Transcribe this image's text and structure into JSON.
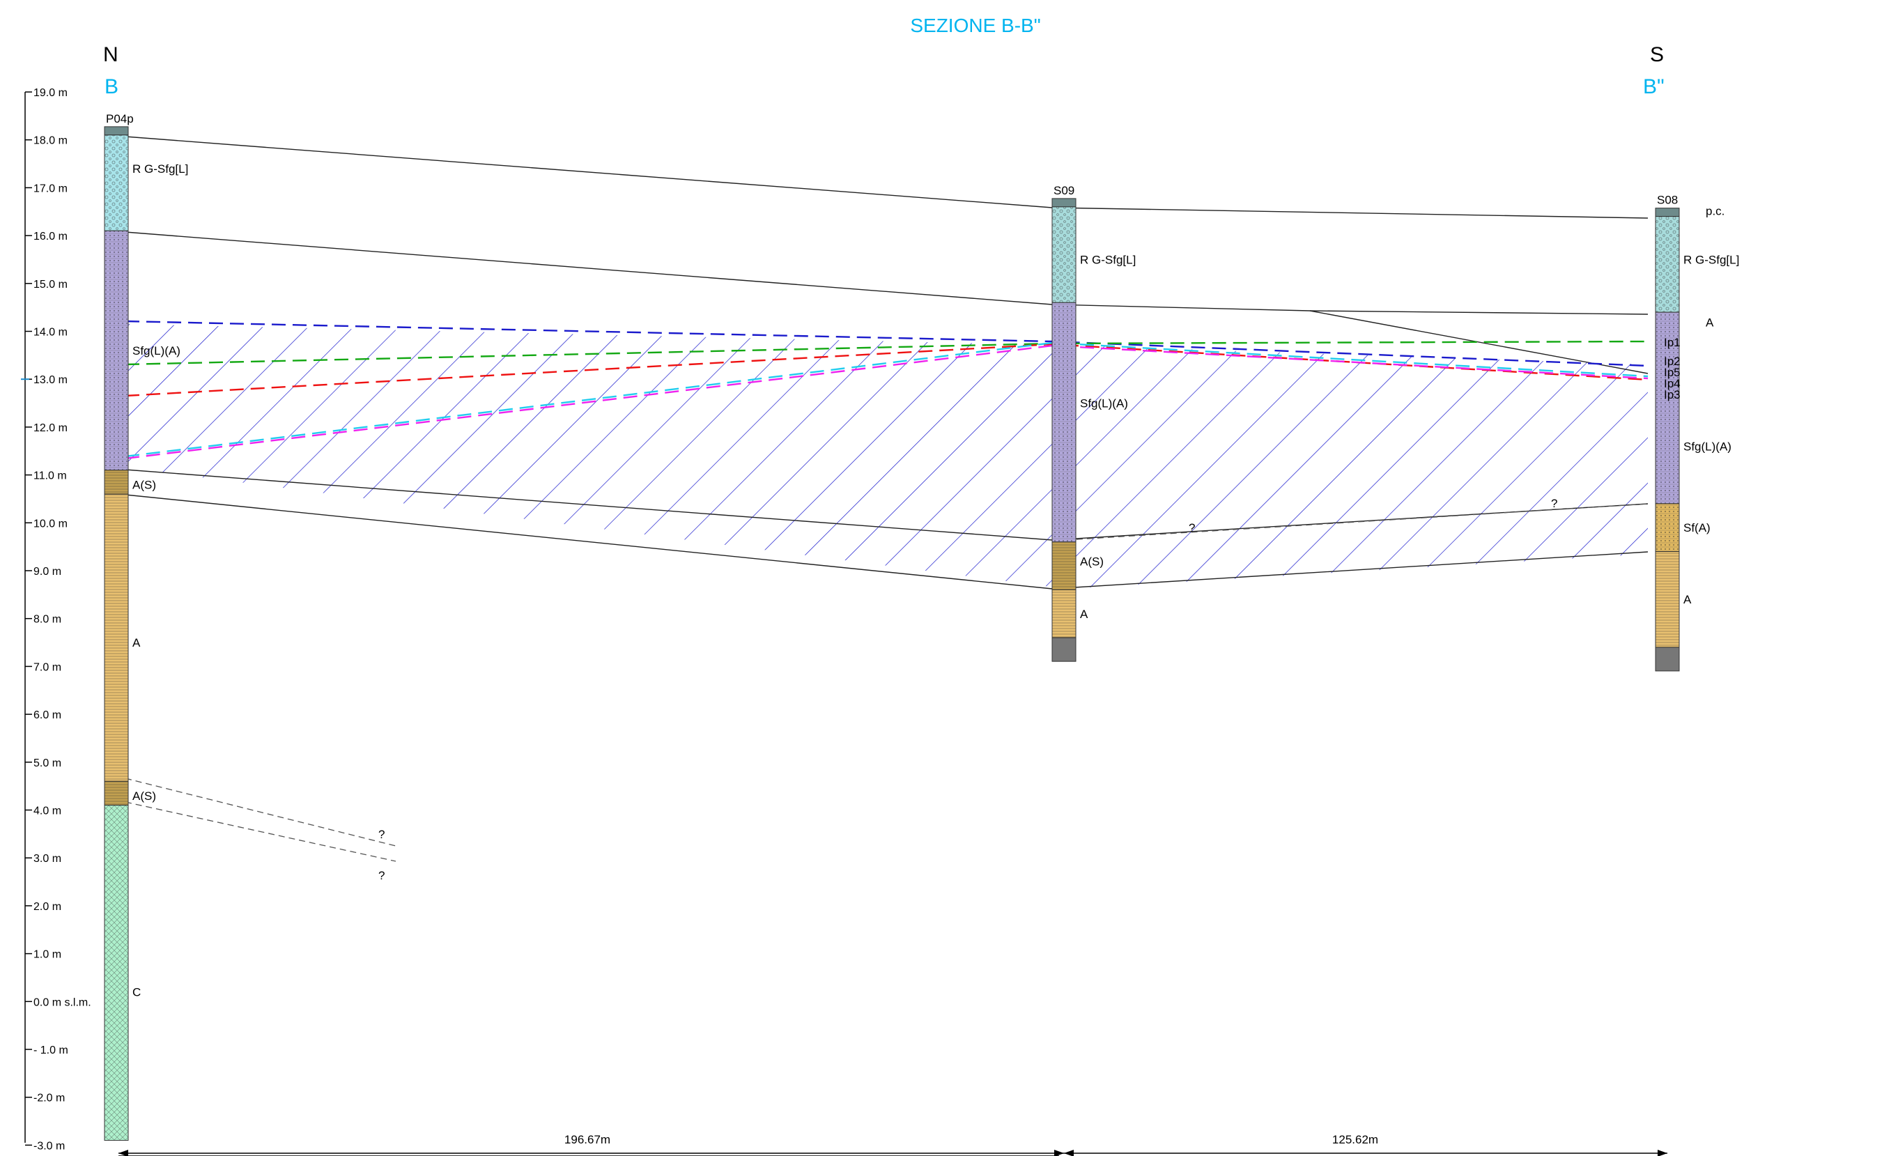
{
  "title": "SEZIONE B-B\"",
  "directions": {
    "left": {
      "cardinal": "N",
      "label": "B"
    },
    "right": {
      "cardinal": "S",
      "label": "B\""
    }
  },
  "axis": {
    "unit": "m",
    "ticks": [
      {
        "value": 19,
        "label": "19.0 m"
      },
      {
        "value": 18,
        "label": "18.0 m"
      },
      {
        "value": 17,
        "label": "17.0 m"
      },
      {
        "value": 16,
        "label": "16.0 m"
      },
      {
        "value": 15,
        "label": "15.0 m"
      },
      {
        "value": 14,
        "label": "14.0 m"
      },
      {
        "value": 13,
        "label": "13.0 m"
      },
      {
        "value": 12,
        "label": "12.0 m"
      },
      {
        "value": 11,
        "label": "11.0 m"
      },
      {
        "value": 10,
        "label": "10.0 m"
      },
      {
        "value": 9,
        "label": "9.0 m"
      },
      {
        "value": 8,
        "label": "8.0 m"
      },
      {
        "value": 7,
        "label": "7.0 m"
      },
      {
        "value": 6,
        "label": "6.0 m"
      },
      {
        "value": 5,
        "label": "5.0 m"
      },
      {
        "value": 4,
        "label": "4.0 m"
      },
      {
        "value": 3,
        "label": "3.0 m"
      },
      {
        "value": 2,
        "label": "2.0 m"
      },
      {
        "value": 1,
        "label": "1.0 m"
      },
      {
        "value": 0,
        "label": "0.0 m s.l.m."
      },
      {
        "value": -1,
        "label": "- 1.0 m"
      },
      {
        "value": -2,
        "label": "-2.0 m"
      },
      {
        "value": -3,
        "label": "-3.0 m"
      }
    ]
  },
  "boreholes": [
    {
      "name": "P04p",
      "layers": [
        {
          "top": 18.1,
          "bottom": 16.1,
          "code": "R G-Sfg[L]",
          "color": "#a8e4ea",
          "label_z": 17.4
        },
        {
          "top": 16.1,
          "bottom": 11.1,
          "code": "Sfg(L)(A)",
          "color": "#b0a6d9",
          "label_z": 13.6
        },
        {
          "top": 11.1,
          "bottom": 10.6,
          "code": "A(S)",
          "color": "#c2a050",
          "label_z": 10.8
        },
        {
          "top": 10.6,
          "bottom": 4.6,
          "code": "A",
          "color": "#e8c070",
          "label_z": 7.5
        },
        {
          "top": 4.6,
          "bottom": 4.1,
          "code": "A(S)",
          "color": "#c2a050",
          "label_z": 4.3
        },
        {
          "top": 4.1,
          "bottom": -2.9,
          "code": "C",
          "color": "#aef0cc",
          "label_z": 0.2
        }
      ]
    },
    {
      "name": "S09",
      "layers": [
        {
          "top": 16.6,
          "bottom": 14.6,
          "code": "R G-Sfg[L]",
          "color": "#a8dcdc",
          "label_z": 15.5
        },
        {
          "top": 14.6,
          "bottom": 9.6,
          "code": "Sfg(L)(A)",
          "color": "#b0a6d9",
          "label_z": 12.5
        },
        {
          "top": 9.6,
          "bottom": 8.6,
          "code": "A(S)",
          "color": "#c2a050",
          "label_z": 9.2
        },
        {
          "top": 8.6,
          "bottom": 7.6,
          "code": "A",
          "color": "#e8c070",
          "label_z": 8.1
        }
      ]
    },
    {
      "name": "S08",
      "top_label": "p.c.",
      "layers": [
        {
          "top": 16.4,
          "bottom": 14.4,
          "code": "R G-Sfg[L]",
          "color": "#a8dcdc",
          "label_z": 15.5
        },
        {
          "top": 14.4,
          "bottom": 10.4,
          "code": "Sfg(L)(A)",
          "color": "#b0a6d9",
          "label_z": 11.6
        },
        {
          "top": 10.4,
          "bottom": 9.4,
          "code": "Sf(A)",
          "color": "#e0b860",
          "label_z": 9.9
        },
        {
          "top": 9.4,
          "bottom": 7.4,
          "code": "A",
          "color": "#e8c070",
          "label_z": 8.4
        }
      ],
      "extra_label": "A"
    }
  ],
  "piezometric_lines": [
    {
      "name": "Ip1",
      "color": "#13a813"
    },
    {
      "name": "Ip2",
      "color": "#1a1acc"
    },
    {
      "name": "Ip5",
      "color": "#22ccee"
    },
    {
      "name": "Ip4",
      "color": "#ee22ee"
    },
    {
      "name": "Ip3",
      "color": "#ee1111"
    }
  ],
  "uncertain_marks": [
    "?",
    "?",
    "?",
    "?"
  ],
  "distances": [
    {
      "label": "196.67m"
    },
    {
      "label": "125.62m"
    }
  ]
}
